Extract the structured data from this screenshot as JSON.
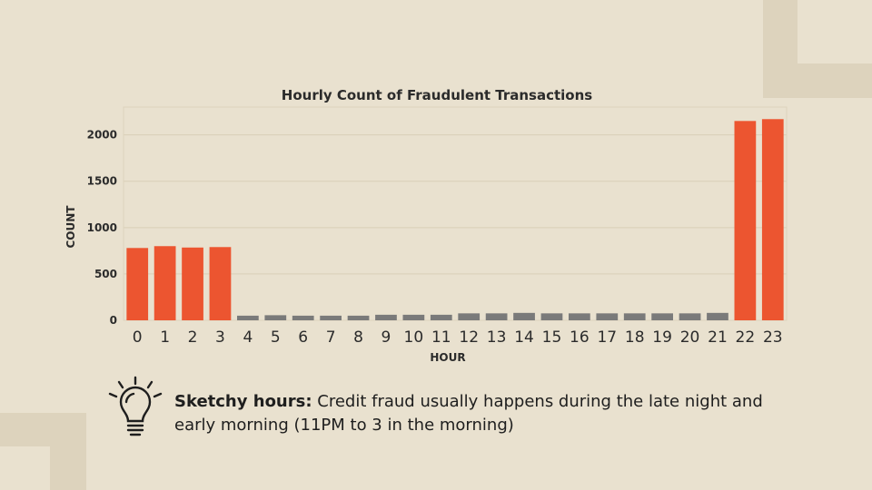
{
  "chart_data": {
    "type": "bar",
    "title": "Hourly Count of Fraudulent Transactions",
    "xlabel": "HOUR",
    "ylabel": "COUNT",
    "categories": [
      "0",
      "1",
      "2",
      "3",
      "4",
      "5",
      "6",
      "7",
      "8",
      "9",
      "10",
      "11",
      "12",
      "13",
      "14",
      "15",
      "16",
      "17",
      "18",
      "19",
      "20",
      "21",
      "22",
      "23"
    ],
    "values": [
      780,
      800,
      785,
      790,
      50,
      55,
      50,
      50,
      50,
      60,
      60,
      60,
      75,
      75,
      80,
      75,
      75,
      75,
      75,
      75,
      75,
      80,
      2150,
      2170
    ],
    "highlighted": [
      0,
      1,
      2,
      3,
      22,
      23
    ],
    "yticks": [
      "0",
      "500",
      "1000",
      "1500",
      "2000"
    ],
    "ylim": [
      0,
      2300
    ],
    "grid": true,
    "colors": {
      "highlight": "#ec5530",
      "normal": "#7a7a7a"
    }
  },
  "callout": {
    "icon": "lightbulb-icon",
    "bold": "Sketchy hours:",
    "text": " Credit fraud usually happens during the late night and early morning (11PM to 3 in the morning)"
  },
  "colors": {
    "background": "#e9e1cf",
    "decoration": "#ddd3bd"
  }
}
